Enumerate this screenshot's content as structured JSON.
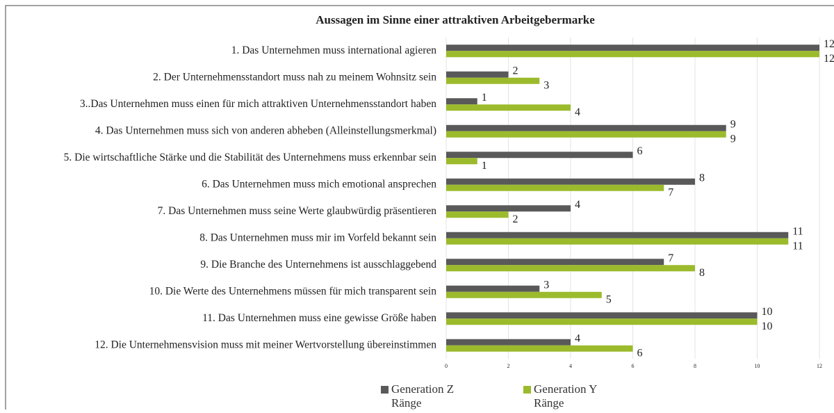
{
  "chart_data": {
    "type": "bar",
    "orientation": "horizontal",
    "title": "Aussagen im Sinne einer attraktiven Arbeitgebermarke",
    "categories": [
      "1. Das Unternehmen muss international agieren",
      "2. Der Unternehmensstandort muss nah zu meinem Wohnsitz sein",
      "3..Das Unternehmen muss einen für mich attraktiven Unternehmensstandort haben",
      "4. Das Unternehmen muss sich von anderen abheben (Alleinstellungsmerkmal)",
      "5. Die wirtschaftliche Stärke und die Stabilität des Unternehmens muss erkennbar sein",
      "6. Das Unternehmen muss mich emotional ansprechen",
      "7. Das Unternehmen muss seine Werte glaubwürdig präsentieren",
      "8. Das Unternehmen muss mir im Vorfeld bekannt sein",
      "9. Die Branche des Unternehmens ist ausschlaggebend",
      "10. Die Werte des Unternehmens müssen für mich transparent sein",
      "11. Das Unternehmen muss eine gewisse Größe haben",
      "12. Die Unternehmensvision muss mit meiner Wertvorstellung übereinstimmen"
    ],
    "series": [
      {
        "name": "Generation Z Ränge",
        "color": "#595959",
        "values": [
          12,
          2,
          1,
          9,
          6,
          8,
          4,
          11,
          7,
          3,
          10,
          4
        ]
      },
      {
        "name": "Generation Y Ränge",
        "color": "#9bbb2c",
        "values": [
          12,
          3,
          4,
          9,
          1,
          7,
          2,
          11,
          8,
          5,
          10,
          6
        ]
      }
    ],
    "xlim": [
      0,
      12
    ],
    "xticks": [
      0,
      2,
      4,
      6,
      8,
      10,
      12
    ],
    "grid": true,
    "legend": "bottom"
  }
}
